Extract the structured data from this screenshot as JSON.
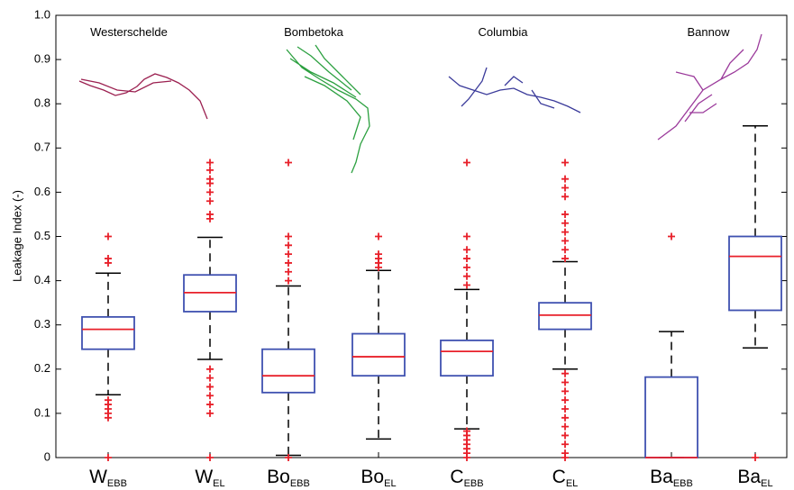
{
  "chart_data": {
    "type": "box",
    "ylabel": "Leakage Index (-)",
    "ylim": [
      0,
      1
    ],
    "yticks": [
      0,
      0.1,
      0.2,
      0.3,
      0.4,
      0.5,
      0.6,
      0.7,
      0.8,
      0.9,
      {
        "value": 1,
        "label": "1.0"
      }
    ],
    "categories": [
      {
        "label": "W",
        "subscript": "EBB"
      },
      {
        "label": "W",
        "subscript": "EL"
      },
      {
        "label": "Bo",
        "subscript": "EBB"
      },
      {
        "label": "Bo",
        "subscript": "EL"
      },
      {
        "label": "C",
        "subscript": "EBB"
      },
      {
        "label": "C",
        "subscript": "EL"
      },
      {
        "label": "Ba",
        "subscript": "EBB"
      },
      {
        "label": "Ba",
        "subscript": "EL"
      }
    ],
    "annotations": [
      "Westerschelde",
      "Bombetoka",
      "Columbia",
      "Bannow"
    ],
    "box_color": "#3f51b0",
    "median_color": "#e8202a",
    "whisker_color": "#000000",
    "flier_color": "#e8202a",
    "boxes": [
      {
        "whislo": 0.142,
        "q1": 0.245,
        "med": 0.29,
        "q3": 0.318,
        "whishi": 0.417,
        "fliers": [
          0.5,
          0.45,
          0.44,
          0.13,
          0.12,
          0.11,
          0.1,
          0.09,
          0
        ]
      },
      {
        "whislo": 0.222,
        "q1": 0.33,
        "med": 0.373,
        "q3": 0.413,
        "whishi": 0.498,
        "fliers": [
          0.667,
          0.65,
          0.63,
          0.62,
          0.6,
          0.58,
          0.55,
          0.54,
          0.2,
          0.18,
          0.16,
          0.14,
          0.12,
          0.1,
          0
        ]
      },
      {
        "whislo": 0.005,
        "q1": 0.147,
        "med": 0.185,
        "q3": 0.245,
        "whishi": 0.388,
        "fliers": [
          0.667,
          0.5,
          0.48,
          0.46,
          0.44,
          0.42,
          0.4,
          0
        ]
      },
      {
        "whislo": 0.042,
        "q1": 0.185,
        "med": 0.228,
        "q3": 0.28,
        "whishi": 0.423,
        "fliers": [
          0.5,
          0.46,
          0.45,
          0.44,
          0.43
        ]
      },
      {
        "whislo": 0.065,
        "q1": 0.185,
        "med": 0.24,
        "q3": 0.265,
        "whishi": 0.38,
        "fliers": [
          0.667,
          0.5,
          0.47,
          0.45,
          0.43,
          0.41,
          0.39,
          0.06,
          0.05,
          0.04,
          0.03,
          0.02,
          0.01,
          0
        ]
      },
      {
        "whislo": 0.2,
        "q1": 0.29,
        "med": 0.322,
        "q3": 0.35,
        "whishi": 0.443,
        "fliers": [
          0.667,
          0.63,
          0.61,
          0.59,
          0.55,
          0.53,
          0.51,
          0.49,
          0.47,
          0.45,
          0.19,
          0.17,
          0.15,
          0.13,
          0.11,
          0.09,
          0.07,
          0.05,
          0.03,
          0.01,
          0
        ]
      },
      {
        "whislo": 0,
        "q1": 0,
        "med": 0,
        "q3": 0.182,
        "whishi": 0.285,
        "fliers": [
          0.5
        ]
      },
      {
        "whislo": 0.248,
        "q1": 0.333,
        "med": 0.455,
        "q3": 0.5,
        "whishi": 0.75,
        "fliers": [
          0
        ]
      }
    ]
  }
}
